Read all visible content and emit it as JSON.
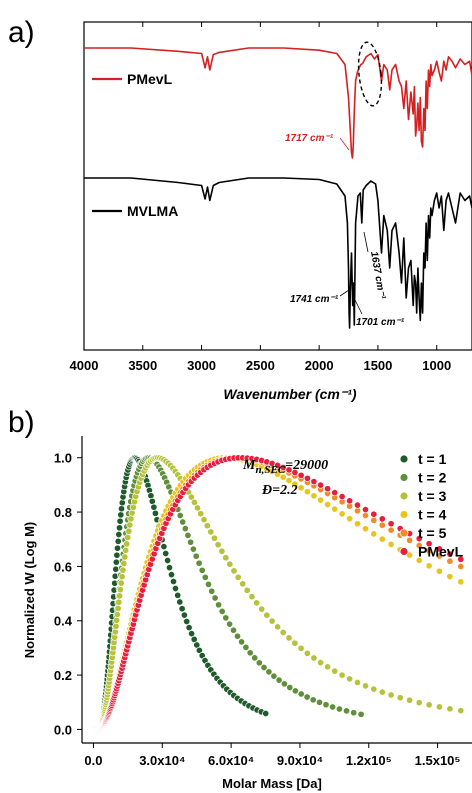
{
  "panel_a_label": "a)",
  "panel_b_label": "b)",
  "chart_data": [
    {
      "type": "line",
      "panel": "a)",
      "xlabel": "Wavenumber (cm⁻¹)",
      "ylabel": "",
      "xlim": [
        4000,
        700
      ],
      "x_reversed": true,
      "x_ticks": [
        "4000",
        "3500",
        "3000",
        "2500",
        "2000",
        "1500",
        "1000"
      ],
      "series": [
        {
          "name": "PMevL",
          "color": "#d42020",
          "x": [
            4000,
            3600,
            3200,
            3000,
            2970,
            2950,
            2930,
            2900,
            2850,
            2600,
            2300,
            2000,
            1850,
            1780,
            1750,
            1735,
            1725,
            1717,
            1710,
            1700,
            1690,
            1675,
            1660,
            1645,
            1630,
            1600,
            1560,
            1530,
            1500,
            1470,
            1450,
            1420,
            1400,
            1380,
            1350,
            1320,
            1300,
            1280,
            1260,
            1240,
            1220,
            1200,
            1190,
            1180,
            1170,
            1160,
            1150,
            1140,
            1130,
            1120,
            1110,
            1100,
            1090,
            1080,
            1070,
            1060,
            1050,
            1040,
            1020,
            1000,
            980,
            960,
            940,
            920,
            900,
            870,
            840,
            800,
            760,
            720,
            700
          ],
          "y": [
            0,
            0,
            0.03,
            0.05,
            0.18,
            0.08,
            0.2,
            0.06,
            0.04,
            0,
            0,
            0.02,
            0.05,
            0.15,
            0.45,
            0.75,
            0.95,
            1.0,
            0.9,
            0.55,
            0.3,
            0.22,
            0.18,
            0.15,
            0.14,
            0.08,
            0.05,
            0.1,
            0.06,
            0.3,
            0.15,
            0.2,
            0.38,
            0.2,
            0.15,
            0.3,
            0.35,
            0.55,
            0.3,
            0.65,
            0.4,
            0.6,
            0.35,
            0.8,
            0.7,
            0.5,
            0.75,
            0.45,
            0.85,
            0.9,
            0.55,
            0.75,
            0.3,
            0.55,
            0.2,
            0.35,
            0.15,
            0.25,
            0.2,
            0.12,
            0.22,
            0.3,
            0.12,
            0.2,
            0.08,
            0.12,
            0.18,
            0.1,
            0.15,
            0.12,
            0.25
          ]
        },
        {
          "name": "MVLMA",
          "color": "#000000",
          "x": [
            4000,
            3600,
            3200,
            3000,
            2970,
            2950,
            2930,
            2900,
            2850,
            2600,
            2300,
            2000,
            1850,
            1780,
            1760,
            1750,
            1745,
            1741,
            1735,
            1725,
            1715,
            1708,
            1701,
            1690,
            1670,
            1650,
            1637,
            1625,
            1600,
            1560,
            1520,
            1500,
            1470,
            1450,
            1420,
            1400,
            1380,
            1350,
            1320,
            1300,
            1280,
            1260,
            1240,
            1220,
            1200,
            1190,
            1180,
            1170,
            1160,
            1150,
            1140,
            1130,
            1120,
            1110,
            1100,
            1090,
            1080,
            1070,
            1060,
            1050,
            1040,
            1020,
            1000,
            980,
            960,
            940,
            920,
            900,
            870,
            840,
            800,
            760,
            720,
            700
          ],
          "y": [
            0,
            0,
            0.03,
            0.05,
            0.14,
            0.06,
            0.15,
            0.05,
            0.03,
            0,
            0,
            0.01,
            0.04,
            0.12,
            0.3,
            0.6,
            0.9,
            1.0,
            0.75,
            0.5,
            0.85,
            0.7,
            0.98,
            0.3,
            0.12,
            0.1,
            0.3,
            0.08,
            0.05,
            0.02,
            0.04,
            0.15,
            0.5,
            0.25,
            0.35,
            0.6,
            0.35,
            0.3,
            0.5,
            0.7,
            0.4,
            0.8,
            0.6,
            0.55,
            0.85,
            0.65,
            0.7,
            0.9,
            0.6,
            0.8,
            0.95,
            0.7,
            0.9,
            0.5,
            0.6,
            0.3,
            0.55,
            0.25,
            0.4,
            0.2,
            0.25,
            0.15,
            0.1,
            0.2,
            0.12,
            0.35,
            0.15,
            0.1,
            0.2,
            0.3,
            0.1,
            0.15,
            0.12,
            0.2
          ]
        }
      ],
      "annotations": [
        {
          "text": "1717 cm⁻¹",
          "series": "PMevL",
          "x": 1717
        },
        {
          "text": "1741 cm⁻¹",
          "series": "MVLMA",
          "x": 1741
        },
        {
          "text": "1701 cm⁻¹",
          "series": "MVLMA",
          "x": 1701
        },
        {
          "text": "1637 cm⁻¹",
          "series": "MVLMA",
          "x": 1637
        }
      ],
      "highlight": "dashed ellipse around the 1637 cm⁻¹ region of PMevL",
      "legend": "left, beside each trace",
      "grid": false
    },
    {
      "type": "scatter",
      "panel": "b)",
      "xlabel": "Molar Mass [Da]",
      "ylabel": "Normalized W (Log M)",
      "xlim": [
        -5000,
        165000
      ],
      "ylim": [
        -0.05,
        1.08
      ],
      "x_ticks": [
        "0.0",
        "3.0x10⁴",
        "6.0x10⁴",
        "9.0x10⁴",
        "1.2x10⁵",
        "1.5x10⁵"
      ],
      "x_tick_values": [
        0,
        30000,
        60000,
        90000,
        120000,
        150000
      ],
      "y_ticks": [
        "0.0",
        "0.2",
        "0.4",
        "0.6",
        "0.8",
        "1.0"
      ],
      "y_tick_values": [
        0,
        0.2,
        0.4,
        0.6,
        0.8,
        1.0
      ],
      "series": [
        {
          "name": "t = 1",
          "color": "#1e5a2a",
          "peak": 18000,
          "width": 0.62,
          "xmax": 77000
        },
        {
          "name": "t = 2",
          "color": "#5f8f3a",
          "peak": 24000,
          "width": 0.68,
          "xmax": 120000
        },
        {
          "name": "t = 3",
          "color": "#b5c23a",
          "peak": 28000,
          "width": 0.78,
          "xmax": 165000
        },
        {
          "name": "t = 4",
          "color": "#e6c61e",
          "peak": 58000,
          "width": 0.95,
          "xmax": 165000
        },
        {
          "name": "t = 5",
          "color": "#f08a2a",
          "peak": 62000,
          "width": 0.97,
          "xmax": 165000
        },
        {
          "name": "PMevL",
          "color": "#e81e3c",
          "peak": 64000,
          "width": 0.98,
          "xmax": 165000
        }
      ],
      "annotation_mn": "=29000",
      "annotation_mn_symbol": "M",
      "annotation_mn_subscript": "n,SEC",
      "annotation_dispersity": "=2.2",
      "annotation_dispersity_symbol": "Đ",
      "legend": "top-right",
      "grid": false
    }
  ]
}
